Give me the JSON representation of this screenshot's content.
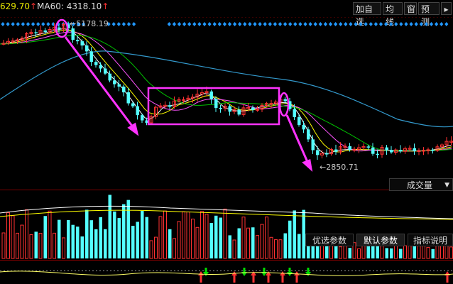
{
  "header": {
    "ma_series": [
      {
        "label": "629.70",
        "arrow": "↑",
        "color": "#e8e800"
      },
      {
        "label": "MA60: 4318.10",
        "arrow": "↑",
        "color": "#5ad0d0"
      }
    ],
    "buttons": [
      {
        "label": "加自选"
      },
      {
        "label": "均线"
      },
      {
        "label": "窗"
      },
      {
        "label": "预测"
      }
    ]
  },
  "price_chart": {
    "high_label": "5178.19",
    "low_label": "2850.71",
    "colors": {
      "up": "#ff3232",
      "down": "#54ffff",
      "ma_fast": "#ffffff",
      "ma_mid": "#ffff00",
      "ma_slow": "#ff54ff",
      "ma_long": "#00c000",
      "ma_60": "#3399cc",
      "annotation": "#ff33ff"
    }
  },
  "volume_panel": {
    "indicator_label": "成交量",
    "tabs": [
      {
        "label": "优选参数"
      },
      {
        "label": "默认参数"
      },
      {
        "label": "指标说明"
      }
    ]
  }
}
